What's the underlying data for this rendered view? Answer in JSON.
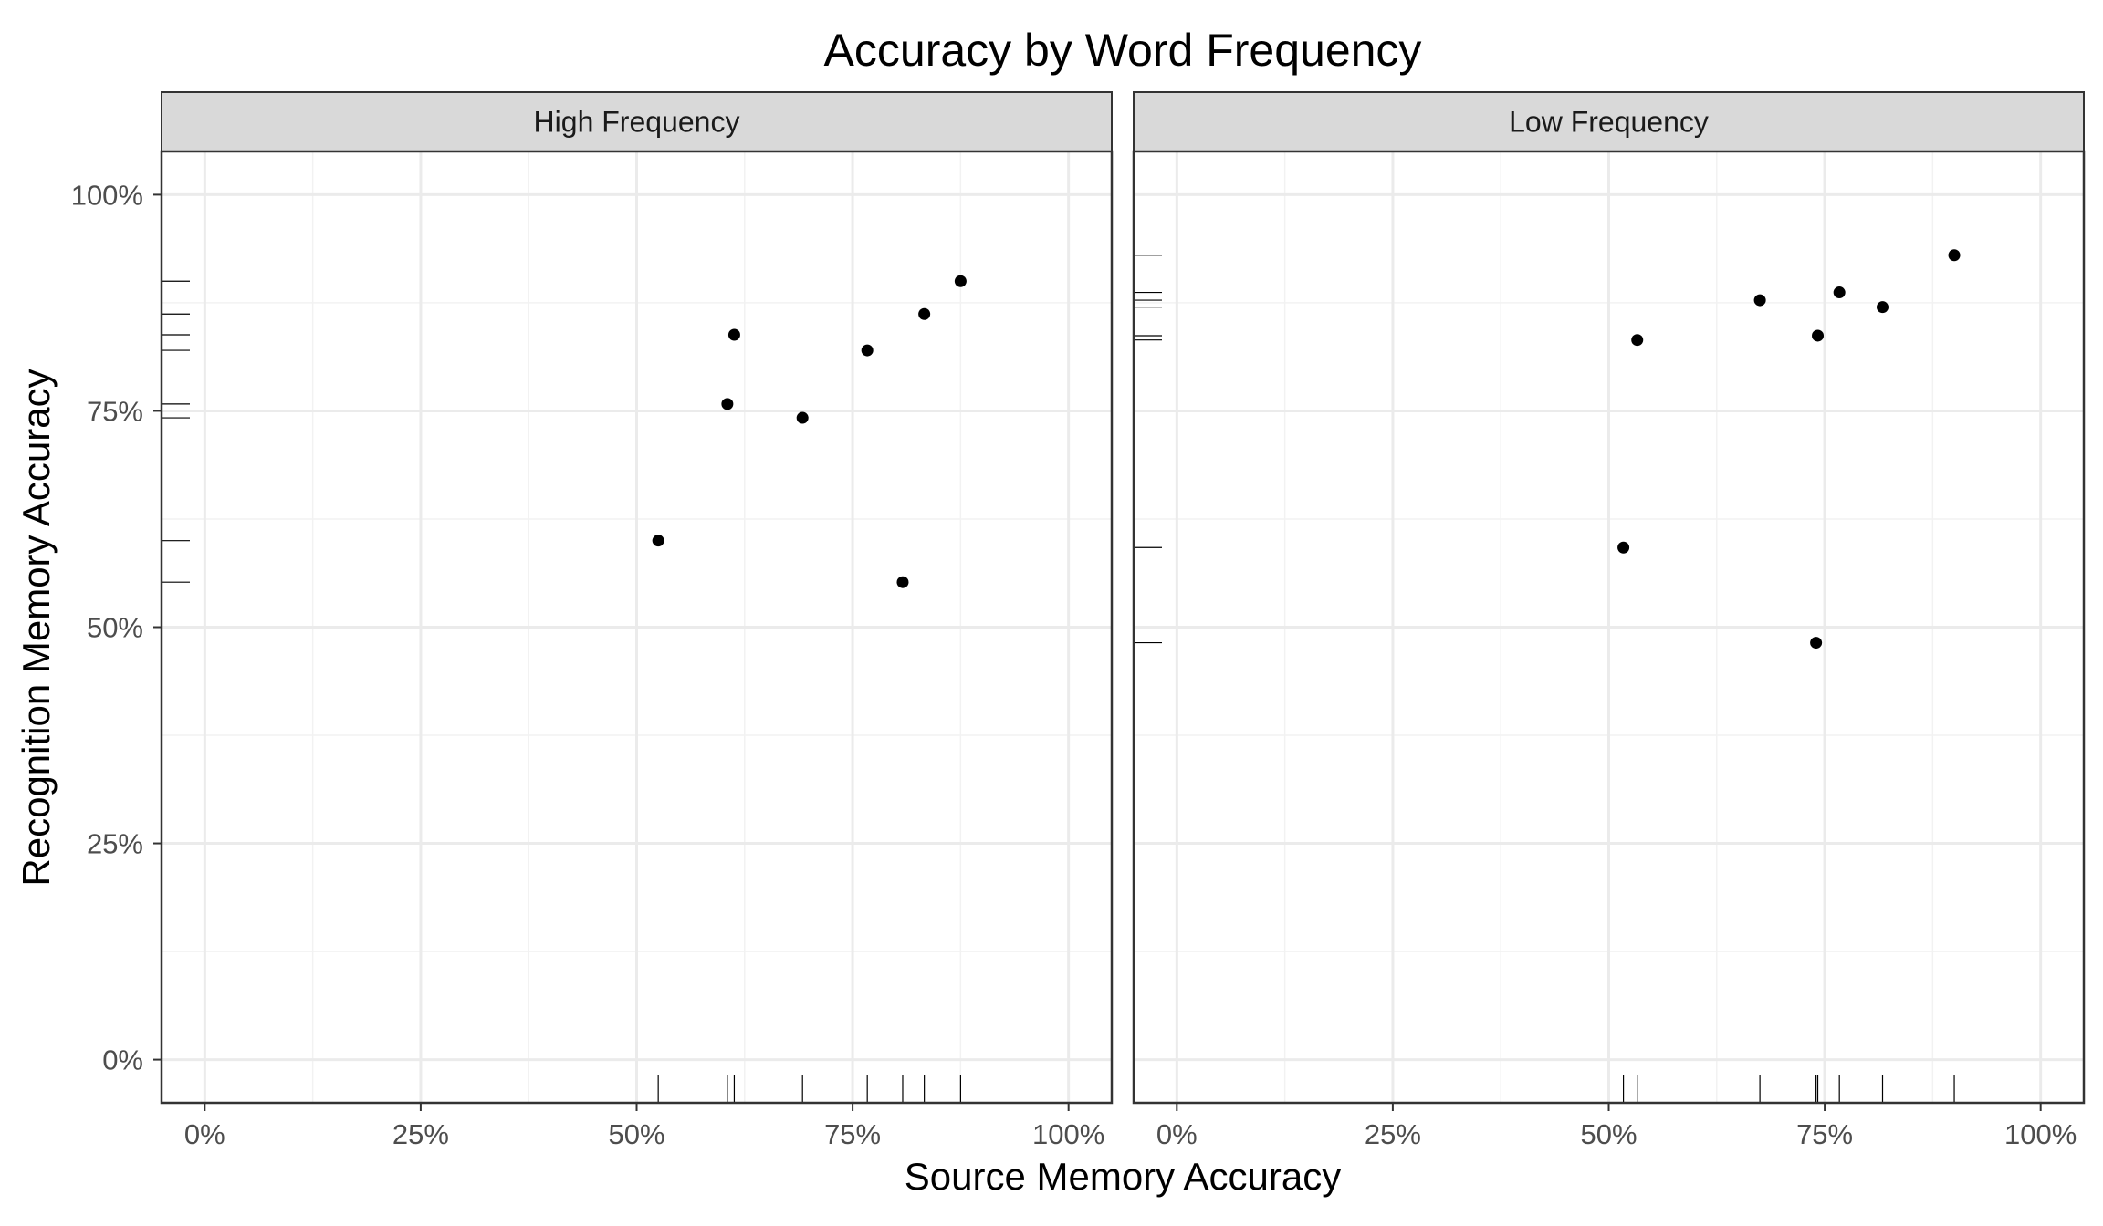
{
  "chart_data": {
    "type": "scatter",
    "title": "Accuracy by Word Frequency",
    "xlabel": "Source Memory Accuracy",
    "ylabel": "Recognition Memory Accuracy",
    "xlim": [
      0,
      1
    ],
    "ylim": [
      0,
      1
    ],
    "x_ticks": [
      0,
      0.25,
      0.5,
      0.75,
      1
    ],
    "x_tick_labels": [
      "0%",
      "25%",
      "50%",
      "75%",
      "100%"
    ],
    "y_ticks": [
      0,
      0.25,
      0.5,
      0.75,
      1
    ],
    "y_tick_labels": [
      "0%",
      "25%",
      "50%",
      "75%",
      "100%"
    ],
    "grid": true,
    "rug": true,
    "colors": {
      "point": "#000000",
      "strip_fill": "#d9d9d9",
      "grid_major": "#ebebeb",
      "panel_border": "#333333"
    },
    "panels": [
      {
        "label": "High Frequency",
        "points": [
          {
            "x": 0.525,
            "y": 0.6
          },
          {
            "x": 0.605,
            "y": 0.758
          },
          {
            "x": 0.613,
            "y": 0.838
          },
          {
            "x": 0.692,
            "y": 0.742
          },
          {
            "x": 0.767,
            "y": 0.82
          },
          {
            "x": 0.808,
            "y": 0.552
          },
          {
            "x": 0.833,
            "y": 0.862
          },
          {
            "x": 0.875,
            "y": 0.9
          }
        ]
      },
      {
        "label": "Low Frequency",
        "points": [
          {
            "x": 0.517,
            "y": 0.592
          },
          {
            "x": 0.533,
            "y": 0.832
          },
          {
            "x": 0.675,
            "y": 0.878
          },
          {
            "x": 0.74,
            "y": 0.482
          },
          {
            "x": 0.742,
            "y": 0.837
          },
          {
            "x": 0.767,
            "y": 0.887
          },
          {
            "x": 0.817,
            "y": 0.87
          },
          {
            "x": 0.9,
            "y": 0.93
          }
        ]
      }
    ]
  }
}
